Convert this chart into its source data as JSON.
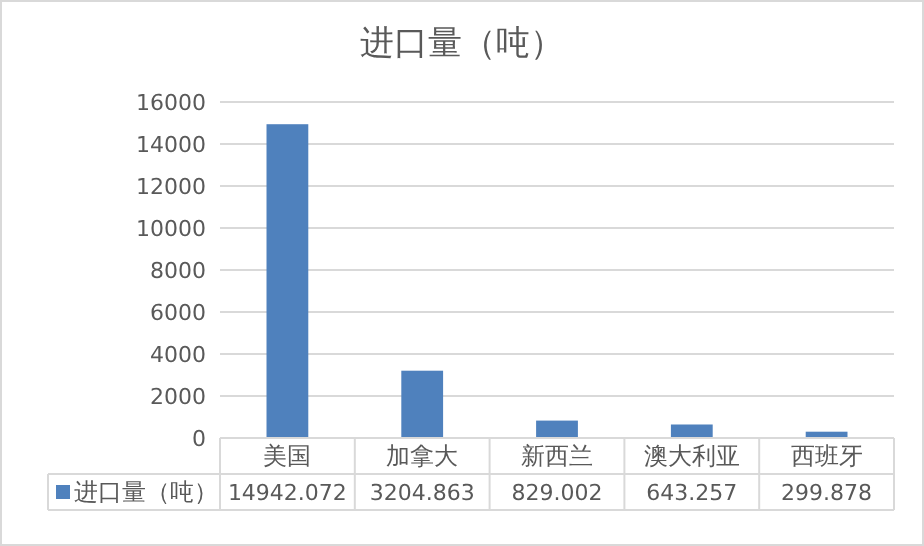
{
  "chart_data": {
    "type": "bar",
    "title": "进口量（吨）",
    "categories": [
      "美国",
      "加拿大",
      "新西兰",
      "澳大利亚",
      "西班牙"
    ],
    "series": [
      {
        "name": "进口量（吨）",
        "color": "#4f81bd",
        "values": [
          14942.072,
          3204.863,
          829.002,
          643.257,
          299.878
        ]
      }
    ],
    "ylim": [
      0,
      16000
    ],
    "yticks": [
      0,
      2000,
      4000,
      6000,
      8000,
      10000,
      12000,
      14000,
      16000
    ],
    "grid": "y",
    "data_labels": true,
    "legend": "bottom"
  }
}
